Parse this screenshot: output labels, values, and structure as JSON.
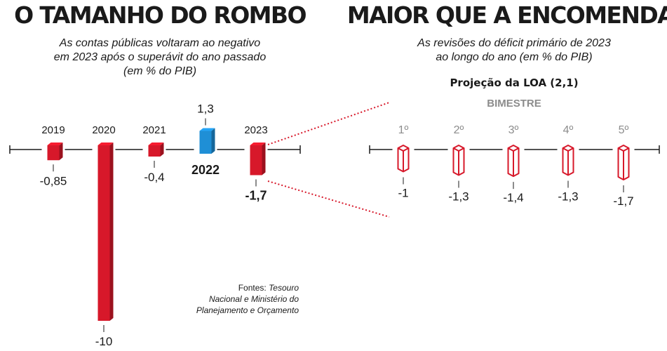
{
  "chart_data": [
    {
      "type": "bar",
      "title": "O TAMANHO DO ROMBO",
      "subtitle": [
        "As contas públicas voltaram ao negativo",
        "em 2023 após o superávit do ano passado",
        "(em % do PIB)"
      ],
      "categories": [
        "2019",
        "2020",
        "2021",
        "2022",
        "2023"
      ],
      "values": [
        -0.85,
        -10,
        -0.4,
        1.3,
        -1.7
      ],
      "value_labels": [
        "-0,85",
        "-10",
        "-0,4",
        "1,3",
        "-1,7"
      ],
      "colors": [
        "#d7182a",
        "#d7182a",
        "#d7182a",
        "#1f8fd6",
        "#d7182a"
      ],
      "source": {
        "prefix": "Fontes: ",
        "lines": [
          "Tesouro",
          "Nacional e Ministério do",
          "Planejamento e Orçamento"
        ]
      }
    },
    {
      "type": "bar",
      "title": "MAIOR QUE A ENCOMENDA",
      "subtitle": [
        "As revisões do déficit primário de 2023",
        "ao longo do ano (em % do PIB)"
      ],
      "annotation": "Projeção da LOA (2,1)",
      "xlabel": "BIMESTRE",
      "categories": [
        "1º",
        "2º",
        "3º",
        "4º",
        "5º"
      ],
      "values": [
        -1,
        -1.3,
        -1.4,
        -1.3,
        -1.7
      ],
      "value_labels": [
        "-1",
        "-1,3",
        "-1,4",
        "-1,3",
        "-1,7"
      ],
      "color": "#d7182a"
    }
  ]
}
